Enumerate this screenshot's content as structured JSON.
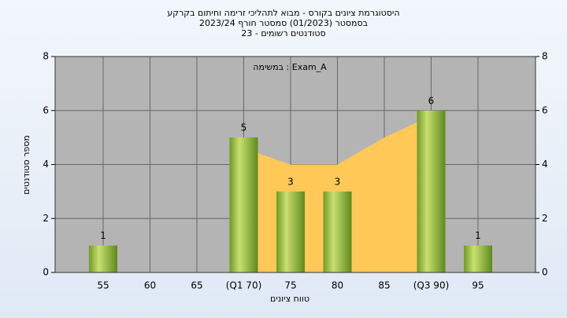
{
  "chart_data": {
    "type": "bar",
    "title": "היסטוגרמת ציונים בקורס - מבוא לתהליכי זרימה וחיתום בקרקע",
    "subtitle": "בסמסטר  (01/2023)  סמסטר חורף 2023/24",
    "subtitle2": "סטודנטים רשומים - 23",
    "annotation": "Exam_A : במשימה",
    "x_label": "טווח ציונים",
    "y_label": "מספר סטודנטים",
    "categories": [
      "55",
      "60",
      "65",
      "(Q1 70)",
      "75",
      "80",
      "85",
      "(Q3 90)",
      "95"
    ],
    "values": [
      1,
      0,
      0,
      5,
      3,
      3,
      0,
      6,
      1
    ],
    "color": "#8fbf3a",
    "area": {
      "color": "#ffc857",
      "values": [
        null,
        null,
        null,
        4.6,
        4,
        4,
        5,
        5.8,
        null
      ]
    },
    "ylim": [
      0,
      8
    ],
    "yticks": [
      0,
      2,
      4,
      6,
      8
    ],
    "y2lim": [
      0,
      8
    ],
    "y2ticks": [
      0,
      2,
      4,
      6,
      8
    ],
    "grid": true
  }
}
